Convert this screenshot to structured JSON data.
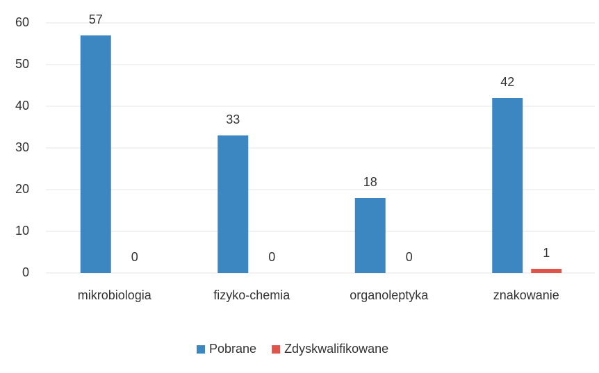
{
  "chart_data": {
    "type": "bar",
    "categories": [
      "mikrobiologia",
      "fizyko-chemia",
      "organoleptyka",
      "znakowanie"
    ],
    "series": [
      {
        "name": "Pobrane",
        "color": "#3c87c2",
        "values": [
          57,
          33,
          18,
          42
        ]
      },
      {
        "name": "Zdyskwalifikowane",
        "color": "#e0554b",
        "values": [
          0,
          0,
          0,
          1
        ]
      }
    ],
    "ylim": [
      0,
      60
    ],
    "yticks": [
      0,
      10,
      20,
      30,
      40,
      50,
      60
    ],
    "grid": true,
    "legend": "bottom"
  }
}
